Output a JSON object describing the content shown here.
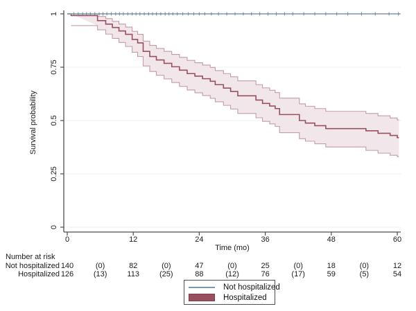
{
  "chart_data": {
    "type": "line",
    "subtype": "kaplan-meier-survival",
    "title": "",
    "xlabel": "Time (mo)",
    "ylabel": "Survival probability",
    "xlim": [
      0,
      60
    ],
    "ylim": [
      0,
      1
    ],
    "grid": true,
    "legend_position": "bottom-center",
    "xtick_values": [
      0,
      12,
      24,
      36,
      48,
      60
    ],
    "xtick_labels": [
      "0",
      "12",
      "24",
      "36",
      "48",
      "60"
    ],
    "ytick_values": [
      0,
      0.25,
      0.5,
      0.75,
      1
    ],
    "ytick_labels": [
      "0",
      "0.25",
      "0.5",
      "0.75",
      "1"
    ],
    "colors": {
      "grid": "#e9f1f3",
      "axis": "#4d4d4d",
      "text": "#1a1a1a",
      "not_hospitalized_line": "#7d97ad",
      "censor_tick": "#60809b",
      "hospitalized_line": "#98505e",
      "band_fill": "#f1e6e9",
      "band_edge": "#c49ca6"
    },
    "series": [
      {
        "name": "Not hospitalized",
        "style": "line",
        "constant_value": 1.0,
        "end_time": 60.6,
        "censor_times": [
          1.2,
          2,
          2.8,
          3.5,
          4.2,
          5,
          5.8,
          6.5,
          7.2,
          8,
          8.8,
          9.5,
          10.2,
          11,
          11.8,
          12.5,
          13.2,
          14,
          14.8,
          15.5,
          16.2,
          17,
          17.8,
          18.5,
          19.2,
          20,
          21,
          22,
          23,
          24,
          25,
          26.2,
          27.5,
          29,
          30.5,
          32,
          33.5,
          35,
          36.5,
          38,
          39.5,
          41,
          43,
          45,
          47,
          49,
          51,
          53.5,
          56,
          58.5,
          60.2
        ]
      },
      {
        "name": "Hospitalized",
        "style": "step-with-ci-band",
        "end_time": 60.3,
        "points": [
          {
            "t": 0.7,
            "s": 0.992,
            "lo": 0.945,
            "hi": 1.0
          },
          {
            "t": 5.5,
            "s": 0.968,
            "lo": 0.925,
            "hi": 0.988
          },
          {
            "t": 7.0,
            "s": 0.952,
            "lo": 0.905,
            "hi": 0.978
          },
          {
            "t": 8.2,
            "s": 0.936,
            "lo": 0.885,
            "hi": 0.965
          },
          {
            "t": 9.4,
            "s": 0.92,
            "lo": 0.866,
            "hi": 0.952
          },
          {
            "t": 10.6,
            "s": 0.904,
            "lo": 0.847,
            "hi": 0.938
          },
          {
            "t": 11.8,
            "s": 0.88,
            "lo": 0.82,
            "hi": 0.918
          },
          {
            "t": 12.8,
            "s": 0.864,
            "lo": 0.8,
            "hi": 0.904
          },
          {
            "t": 13.8,
            "s": 0.824,
            "lo": 0.756,
            "hi": 0.872
          },
          {
            "t": 15.0,
            "s": 0.8,
            "lo": 0.73,
            "hi": 0.852
          },
          {
            "t": 16.2,
            "s": 0.784,
            "lo": 0.712,
            "hi": 0.838
          },
          {
            "t": 17.6,
            "s": 0.768,
            "lo": 0.695,
            "hi": 0.824
          },
          {
            "t": 19.0,
            "s": 0.752,
            "lo": 0.678,
            "hi": 0.81
          },
          {
            "t": 20.4,
            "s": 0.736,
            "lo": 0.66,
            "hi": 0.796
          },
          {
            "t": 21.8,
            "s": 0.72,
            "lo": 0.643,
            "hi": 0.782
          },
          {
            "t": 23.2,
            "s": 0.708,
            "lo": 0.63,
            "hi": 0.771
          },
          {
            "t": 24.6,
            "s": 0.696,
            "lo": 0.617,
            "hi": 0.76
          },
          {
            "t": 26.0,
            "s": 0.684,
            "lo": 0.604,
            "hi": 0.749
          },
          {
            "t": 26.9,
            "s": 0.668,
            "lo": 0.588,
            "hi": 0.734
          },
          {
            "t": 28.4,
            "s": 0.652,
            "lo": 0.571,
            "hi": 0.72
          },
          {
            "t": 29.7,
            "s": 0.636,
            "lo": 0.554,
            "hi": 0.705
          },
          {
            "t": 31.0,
            "s": 0.616,
            "lo": 0.533,
            "hi": 0.686
          },
          {
            "t": 34.3,
            "s": 0.596,
            "lo": 0.513,
            "hi": 0.668
          },
          {
            "t": 35.5,
            "s": 0.58,
            "lo": 0.496,
            "hi": 0.653
          },
          {
            "t": 36.8,
            "s": 0.568,
            "lo": 0.484,
            "hi": 0.642
          },
          {
            "t": 37.8,
            "s": 0.556,
            "lo": 0.472,
            "hi": 0.631
          },
          {
            "t": 38.6,
            "s": 0.528,
            "lo": 0.443,
            "hi": 0.605
          },
          {
            "t": 42.2,
            "s": 0.5,
            "lo": 0.415,
            "hi": 0.578
          },
          {
            "t": 43.3,
            "s": 0.488,
            "lo": 0.403,
            "hi": 0.567
          },
          {
            "t": 45.0,
            "s": 0.476,
            "lo": 0.391,
            "hi": 0.556
          },
          {
            "t": 47.0,
            "s": 0.462,
            "lo": 0.376,
            "hi": 0.543
          },
          {
            "t": 54.3,
            "s": 0.452,
            "lo": 0.36,
            "hi": 0.533
          },
          {
            "t": 56.5,
            "s": 0.44,
            "lo": 0.347,
            "hi": 0.522
          },
          {
            "t": 58.7,
            "s": 0.43,
            "lo": 0.337,
            "hi": 0.512
          },
          {
            "t": 60.0,
            "s": 0.42,
            "lo": 0.33,
            "hi": 0.503
          }
        ]
      }
    ],
    "risk_table": {
      "title": "Number at risk",
      "column_times": [
        0,
        6,
        12,
        18,
        24,
        30,
        36,
        42,
        48,
        54,
        60
      ],
      "rows": [
        {
          "label": "Not hospitalized",
          "values": [
            "140",
            "(0)",
            "82",
            "(0)",
            "47",
            "(0)",
            "25",
            "(0)",
            "18",
            "(0)",
            "12"
          ]
        },
        {
          "label": "Hospitalized",
          "values": [
            "126",
            "(13)",
            "113",
            "(25)",
            "88",
            "(12)",
            "76",
            "(17)",
            "59",
            "(5)",
            "54"
          ]
        }
      ]
    },
    "legend": {
      "entries": [
        {
          "label": "Not hospitalized",
          "swatch": "line"
        },
        {
          "label": "Hospitalized",
          "swatch": "rect"
        }
      ]
    }
  }
}
